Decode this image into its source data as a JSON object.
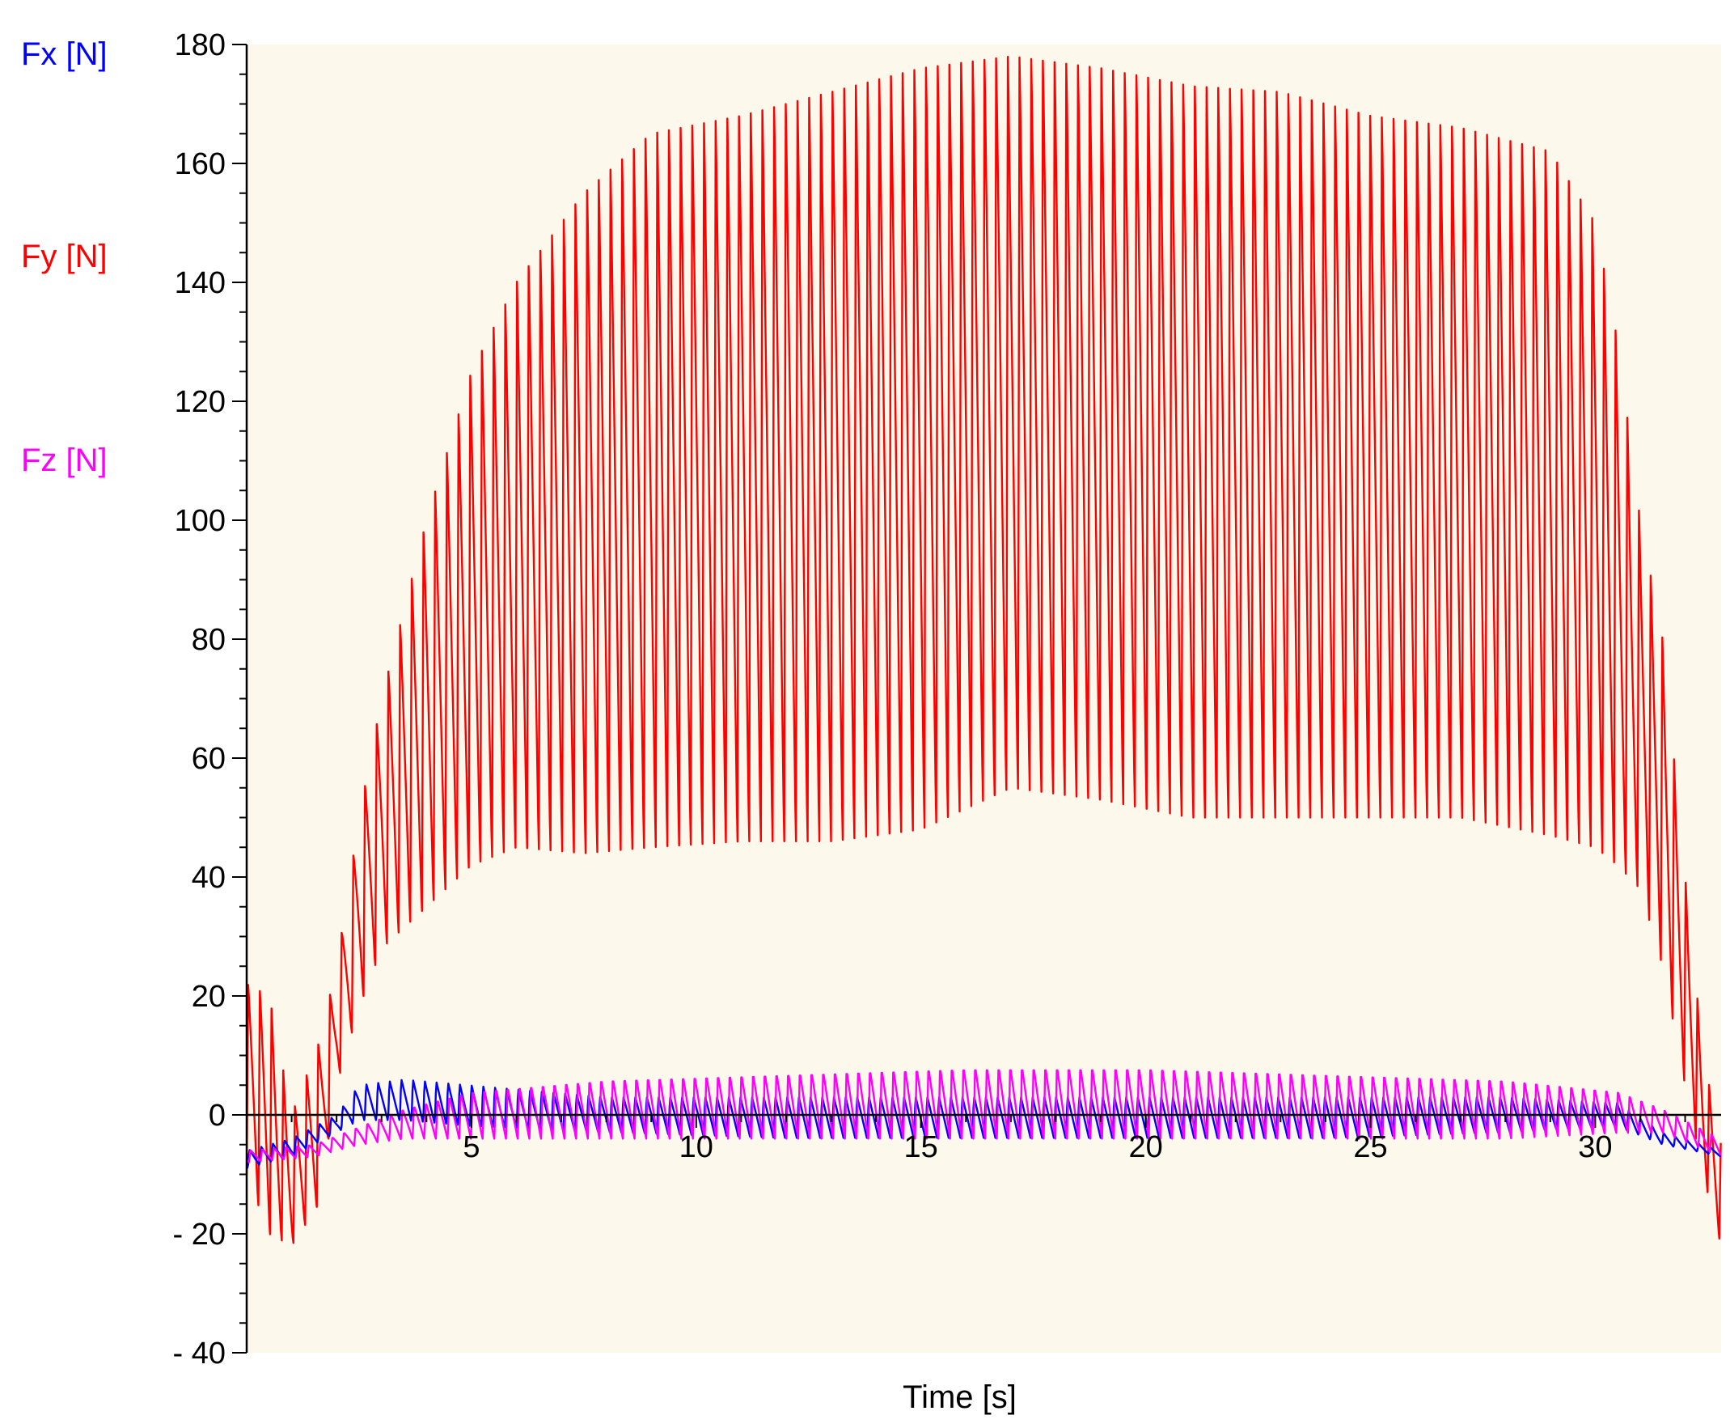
{
  "chart_data": {
    "type": "line",
    "title": "",
    "xlabel": "Time [s]",
    "ylabel": "",
    "xlim": [
      0,
      32.8
    ],
    "ylim": [
      -40,
      180
    ],
    "x_ticks": [
      {
        "value": 5,
        "label": "5"
      },
      {
        "value": 10,
        "label": "10"
      },
      {
        "value": 15,
        "label": "15"
      },
      {
        "value": 20,
        "label": "20"
      },
      {
        "value": 25,
        "label": "25"
      },
      {
        "value": 30,
        "label": "30"
      }
    ],
    "y_ticks": [
      {
        "value": 180,
        "label": "180"
      },
      {
        "value": 160,
        "label": "160"
      },
      {
        "value": 140,
        "label": "140"
      },
      {
        "value": 120,
        "label": "120"
      },
      {
        "value": 100,
        "label": "100"
      },
      {
        "value": 80,
        "label": "80"
      },
      {
        "value": 60,
        "label": "60"
      },
      {
        "value": 40,
        "label": "40"
      },
      {
        "value": 20,
        "label": "20"
      },
      {
        "value": 0,
        "label": "0"
      },
      {
        "value": -20,
        "label": "- 20"
      },
      {
        "value": -40,
        "label": "- 40"
      }
    ],
    "grid": false,
    "zero_line": true,
    "plot_background": "#fdf8ec",
    "legend": {
      "placement": "left",
      "entries": [
        {
          "label": "Fx [N]",
          "color": "#0000ff"
        },
        {
          "label": "Fy [N]",
          "color": "#ff0000"
        },
        {
          "label": "Fz [N]",
          "color": "#ff00ff"
        }
      ]
    },
    "series": [
      {
        "name": "Fx [N]",
        "color": "#0000ff",
        "oscillation_period_s": 0.26,
        "envelope": [
          {
            "t": 0.0,
            "min": -9,
            "max": -6
          },
          {
            "t": 1.0,
            "min": -7,
            "max": -4
          },
          {
            "t": 2.0,
            "min": -3,
            "max": 0
          },
          {
            "t": 2.5,
            "min": -1,
            "max": 5
          },
          {
            "t": 3.5,
            "min": -1,
            "max": 6
          },
          {
            "t": 5.0,
            "min": -2,
            "max": 5
          },
          {
            "t": 8.0,
            "min": -3,
            "max": 3
          },
          {
            "t": 12.0,
            "min": -4,
            "max": 3
          },
          {
            "t": 16.0,
            "min": -4,
            "max": 3
          },
          {
            "t": 20.0,
            "min": -4,
            "max": 3
          },
          {
            "t": 24.0,
            "min": -4,
            "max": 3
          },
          {
            "t": 28.0,
            "min": -3,
            "max": 3
          },
          {
            "t": 30.5,
            "min": -2,
            "max": 2
          },
          {
            "t": 31.5,
            "min": -5,
            "max": -3
          },
          {
            "t": 32.8,
            "min": -7,
            "max": -6
          }
        ]
      },
      {
        "name": "Fy [N]",
        "color": "#ff0000",
        "oscillation_period_s": 0.26,
        "envelope": [
          {
            "t": 0.0,
            "min": -10,
            "max": 22
          },
          {
            "t": 0.5,
            "min": -20,
            "max": 20
          },
          {
            "t": 1.0,
            "min": -22,
            "max": 0
          },
          {
            "t": 1.6,
            "min": -15,
            "max": 12
          },
          {
            "t": 2.0,
            "min": 5,
            "max": 25
          },
          {
            "t": 2.5,
            "min": 18,
            "max": 50
          },
          {
            "t": 3.0,
            "min": 28,
            "max": 70
          },
          {
            "t": 4.0,
            "min": 35,
            "max": 100
          },
          {
            "t": 5.0,
            "min": 42,
            "max": 125
          },
          {
            "t": 6.0,
            "min": 45,
            "max": 140
          },
          {
            "t": 7.5,
            "min": 44,
            "max": 155
          },
          {
            "t": 9.0,
            "min": 45,
            "max": 165
          },
          {
            "t": 11.0,
            "min": 46,
            "max": 168
          },
          {
            "t": 13.0,
            "min": 46,
            "max": 172
          },
          {
            "t": 15.0,
            "min": 48,
            "max": 176
          },
          {
            "t": 17.0,
            "min": 55,
            "max": 178
          },
          {
            "t": 19.0,
            "min": 53,
            "max": 176
          },
          {
            "t": 21.0,
            "min": 50,
            "max": 173
          },
          {
            "t": 23.0,
            "min": 50,
            "max": 172
          },
          {
            "t": 25.0,
            "min": 50,
            "max": 168
          },
          {
            "t": 27.0,
            "min": 50,
            "max": 166
          },
          {
            "t": 29.0,
            "min": 47,
            "max": 162
          },
          {
            "t": 30.0,
            "min": 45,
            "max": 150
          },
          {
            "t": 30.5,
            "min": 42,
            "max": 130
          },
          {
            "t": 31.0,
            "min": 38,
            "max": 100
          },
          {
            "t": 31.5,
            "min": 25,
            "max": 80
          },
          {
            "t": 32.0,
            "min": 5,
            "max": 40
          },
          {
            "t": 32.4,
            "min": -10,
            "max": 10
          },
          {
            "t": 32.8,
            "min": -22,
            "max": -5
          }
        ]
      },
      {
        "name": "Fz [N]",
        "color": "#ff00ff",
        "oscillation_period_s": 0.26,
        "envelope": [
          {
            "t": 0.0,
            "min": -8,
            "max": -6
          },
          {
            "t": 1.5,
            "min": -7,
            "max": -5
          },
          {
            "t": 2.5,
            "min": -5,
            "max": -2
          },
          {
            "t": 3.5,
            "min": -4,
            "max": 1
          },
          {
            "t": 5.0,
            "min": -4,
            "max": 4
          },
          {
            "t": 8.0,
            "min": -4,
            "max": 6
          },
          {
            "t": 12.0,
            "min": -4,
            "max": 7
          },
          {
            "t": 16.0,
            "min": -4,
            "max": 8
          },
          {
            "t": 20.0,
            "min": -4,
            "max": 8
          },
          {
            "t": 24.0,
            "min": -4,
            "max": 7
          },
          {
            "t": 28.0,
            "min": -4,
            "max": 6
          },
          {
            "t": 30.5,
            "min": -3,
            "max": 4
          },
          {
            "t": 31.5,
            "min": -3,
            "max": 1
          },
          {
            "t": 32.8,
            "min": -7,
            "max": -4
          }
        ]
      }
    ]
  }
}
